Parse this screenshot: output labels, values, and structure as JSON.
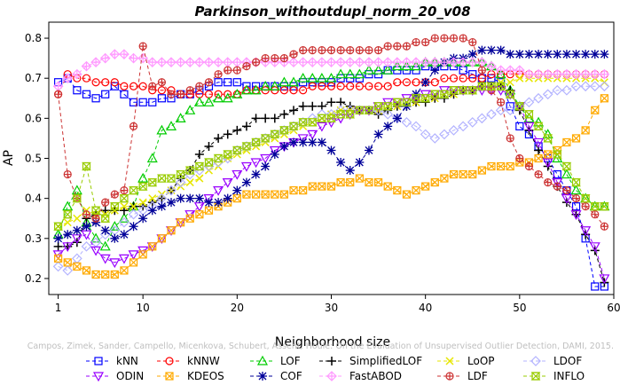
{
  "chart_data": {
    "type": "line",
    "title": "Parkinson_withoutdupl_norm_20_v08",
    "xlabel": "Neighborhood size",
    "ylabel": "AP",
    "xlim": [
      0,
      60
    ],
    "ylim": [
      0.16,
      0.84
    ],
    "xticks": [
      "1",
      "10",
      "20",
      "30",
      "40",
      "50",
      "60"
    ],
    "yticks": [
      "0.2",
      "0.3",
      "0.4",
      "0.5",
      "0.6",
      "0.7",
      "0.8"
    ],
    "grid": false,
    "legend_position": "bottom",
    "watermark": "Campos, Zimek, Sander, Campello, Micenkova, Schubert, Assent, Houle: On the Evaluation of Unsupervised Outlier Detection, DAMI, 2015.",
    "x": [
      1,
      2,
      3,
      4,
      5,
      6,
      7,
      8,
      9,
      10,
      11,
      12,
      13,
      14,
      15,
      16,
      17,
      18,
      19,
      20,
      21,
      22,
      23,
      24,
      25,
      26,
      27,
      28,
      29,
      30,
      31,
      32,
      33,
      34,
      35,
      36,
      37,
      38,
      39,
      40,
      41,
      42,
      43,
      44,
      45,
      46,
      47,
      48,
      49,
      50,
      51,
      52,
      53,
      54,
      55,
      56,
      57,
      58,
      59
    ],
    "series": [
      {
        "name": "kNN",
        "color": "#0000ff",
        "marker": "square",
        "dash": "4,3",
        "values": [
          0.69,
          0.7,
          0.67,
          0.66,
          0.65,
          0.66,
          0.68,
          0.66,
          0.64,
          0.64,
          0.64,
          0.65,
          0.65,
          0.66,
          0.66,
          0.67,
          0.68,
          0.69,
          0.69,
          0.69,
          0.68,
          0.68,
          0.68,
          0.68,
          0.68,
          0.68,
          0.69,
          0.69,
          0.69,
          0.69,
          0.7,
          0.7,
          0.7,
          0.71,
          0.71,
          0.72,
          0.72,
          0.72,
          0.72,
          0.73,
          0.73,
          0.73,
          0.73,
          0.72,
          0.71,
          0.7,
          0.7,
          0.69,
          0.63,
          0.58,
          0.56,
          0.53,
          0.5,
          0.46,
          0.42,
          0.38,
          0.3,
          0.18,
          0.18
        ]
      },
      {
        "name": "kNNW",
        "color": "#ff0000",
        "marker": "circle",
        "dash": "4,3",
        "values": [
          0.66,
          0.71,
          0.7,
          0.7,
          0.69,
          0.69,
          0.69,
          0.68,
          0.68,
          0.68,
          0.67,
          0.67,
          0.67,
          0.66,
          0.66,
          0.66,
          0.66,
          0.66,
          0.66,
          0.66,
          0.67,
          0.67,
          0.67,
          0.67,
          0.67,
          0.67,
          0.67,
          0.68,
          0.68,
          0.68,
          0.68,
          0.68,
          0.68,
          0.68,
          0.68,
          0.68,
          0.69,
          0.69,
          0.69,
          0.69,
          0.69,
          0.7,
          0.7,
          0.7,
          0.7,
          0.7,
          0.71,
          0.71,
          0.71,
          0.71,
          0.71,
          0.71,
          0.71,
          0.71,
          0.71,
          0.71,
          0.71,
          0.71,
          0.71
        ]
      },
      {
        "name": "LOF",
        "color": "#00cc00",
        "marker": "triangle",
        "dash": "4,3",
        "values": [
          0.31,
          0.38,
          0.42,
          0.34,
          0.3,
          0.28,
          0.33,
          0.35,
          0.38,
          0.45,
          0.5,
          0.57,
          0.58,
          0.6,
          0.62,
          0.64,
          0.64,
          0.65,
          0.65,
          0.66,
          0.67,
          0.67,
          0.68,
          0.68,
          0.69,
          0.69,
          0.7,
          0.7,
          0.7,
          0.7,
          0.71,
          0.71,
          0.71,
          0.72,
          0.72,
          0.72,
          0.73,
          0.73,
          0.73,
          0.74,
          0.74,
          0.74,
          0.74,
          0.74,
          0.74,
          0.74,
          0.73,
          0.71,
          0.67,
          0.63,
          0.6,
          0.59,
          0.56,
          0.5,
          0.46,
          0.42,
          0.4,
          0.38,
          0.38
        ]
      },
      {
        "name": "SimplifiedLOF",
        "color": "#000000",
        "marker": "plus",
        "dash": "4,3",
        "values": [
          0.28,
          0.28,
          0.29,
          0.35,
          0.36,
          0.37,
          0.37,
          0.37,
          0.38,
          0.38,
          0.39,
          0.4,
          0.42,
          0.45,
          0.47,
          0.51,
          0.53,
          0.55,
          0.56,
          0.57,
          0.58,
          0.6,
          0.6,
          0.6,
          0.61,
          0.62,
          0.63,
          0.63,
          0.63,
          0.64,
          0.64,
          0.63,
          0.62,
          0.62,
          0.61,
          0.62,
          0.63,
          0.63,
          0.64,
          0.64,
          0.65,
          0.65,
          0.66,
          0.67,
          0.67,
          0.68,
          0.68,
          0.68,
          0.67,
          0.62,
          0.57,
          0.52,
          0.48,
          0.43,
          0.39,
          0.36,
          0.31,
          0.27,
          0.19
        ]
      },
      {
        "name": "LoOP",
        "color": "#e6e600",
        "marker": "x",
        "dash": "4,3",
        "values": [
          0.33,
          0.34,
          0.35,
          0.37,
          0.36,
          0.36,
          0.37,
          0.38,
          0.38,
          0.39,
          0.4,
          0.41,
          0.42,
          0.43,
          0.44,
          0.45,
          0.47,
          0.48,
          0.5,
          0.51,
          0.52,
          0.53,
          0.54,
          0.55,
          0.56,
          0.57,
          0.58,
          0.59,
          0.6,
          0.61,
          0.62,
          0.62,
          0.62,
          0.62,
          0.62,
          0.63,
          0.63,
          0.64,
          0.64,
          0.65,
          0.65,
          0.66,
          0.66,
          0.67,
          0.67,
          0.68,
          0.68,
          0.69,
          0.69,
          0.7,
          0.7,
          0.7,
          0.7,
          0.7,
          0.7,
          0.7,
          0.7,
          0.7,
          0.69
        ]
      },
      {
        "name": "LDOF",
        "color": "#b3b3ff",
        "marker": "diamond",
        "dash": "4,3",
        "values": [
          0.23,
          0.22,
          0.25,
          0.28,
          0.29,
          0.31,
          0.32,
          0.34,
          0.36,
          0.37,
          0.38,
          0.4,
          0.42,
          0.44,
          0.46,
          0.47,
          0.48,
          0.49,
          0.5,
          0.52,
          0.53,
          0.54,
          0.55,
          0.56,
          0.57,
          0.58,
          0.59,
          0.6,
          0.61,
          0.61,
          0.62,
          0.62,
          0.62,
          0.62,
          0.62,
          0.61,
          0.6,
          0.59,
          0.58,
          0.56,
          0.55,
          0.56,
          0.57,
          0.58,
          0.59,
          0.6,
          0.61,
          0.62,
          0.62,
          0.63,
          0.64,
          0.65,
          0.66,
          0.67,
          0.67,
          0.68,
          0.68,
          0.68,
          0.68
        ]
      },
      {
        "name": "ODIN",
        "color": "#9900ff",
        "marker": "triangle-down",
        "dash": "4,3",
        "values": [
          0.26,
          0.28,
          0.3,
          0.31,
          0.27,
          0.25,
          0.24,
          0.25,
          0.26,
          0.27,
          0.28,
          0.3,
          0.32,
          0.34,
          0.36,
          0.38,
          0.4,
          0.42,
          0.44,
          0.46,
          0.48,
          0.49,
          0.5,
          0.52,
          0.53,
          0.54,
          0.55,
          0.56,
          0.58,
          0.59,
          0.6,
          0.61,
          0.62,
          0.62,
          0.63,
          0.64,
          0.64,
          0.65,
          0.65,
          0.66,
          0.66,
          0.67,
          0.67,
          0.67,
          0.67,
          0.67,
          0.67,
          0.67,
          0.66,
          0.63,
          0.58,
          0.54,
          0.49,
          0.44,
          0.4,
          0.36,
          0.32,
          0.28,
          0.2
        ]
      },
      {
        "name": "KDEOS",
        "color": "#ffaa00",
        "marker": "square-x",
        "dash": "4,3",
        "values": [
          0.25,
          0.24,
          0.23,
          0.22,
          0.21,
          0.21,
          0.21,
          0.22,
          0.24,
          0.26,
          0.28,
          0.3,
          0.32,
          0.34,
          0.35,
          0.36,
          0.37,
          0.38,
          0.39,
          0.4,
          0.41,
          0.41,
          0.41,
          0.41,
          0.41,
          0.42,
          0.42,
          0.43,
          0.43,
          0.43,
          0.44,
          0.44,
          0.45,
          0.44,
          0.44,
          0.43,
          0.42,
          0.41,
          0.42,
          0.43,
          0.44,
          0.45,
          0.46,
          0.46,
          0.46,
          0.47,
          0.48,
          0.48,
          0.48,
          0.49,
          0.49,
          0.5,
          0.51,
          0.52,
          0.54,
          0.55,
          0.57,
          0.62,
          0.65
        ]
      },
      {
        "name": "COF",
        "color": "#000099",
        "marker": "star",
        "dash": "4,3",
        "values": [
          0.3,
          0.31,
          0.32,
          0.33,
          0.34,
          0.32,
          0.3,
          0.31,
          0.33,
          0.35,
          0.37,
          0.38,
          0.39,
          0.4,
          0.4,
          0.4,
          0.39,
          0.39,
          0.4,
          0.42,
          0.44,
          0.46,
          0.48,
          0.51,
          0.53,
          0.54,
          0.54,
          0.54,
          0.54,
          0.52,
          0.49,
          0.47,
          0.49,
          0.52,
          0.56,
          0.58,
          0.6,
          0.63,
          0.66,
          0.69,
          0.72,
          0.74,
          0.75,
          0.75,
          0.76,
          0.77,
          0.77,
          0.77,
          0.76,
          0.76,
          0.76,
          0.76,
          0.76,
          0.76,
          0.76,
          0.76,
          0.76,
          0.76,
          0.76
        ]
      },
      {
        "name": "FastABOD",
        "color": "#ff99ff",
        "marker": "diamond-plus",
        "dash": "4,3",
        "values": [
          0.68,
          0.7,
          0.71,
          0.73,
          0.74,
          0.75,
          0.76,
          0.76,
          0.75,
          0.75,
          0.74,
          0.74,
          0.74,
          0.74,
          0.74,
          0.74,
          0.74,
          0.74,
          0.74,
          0.74,
          0.74,
          0.74,
          0.74,
          0.74,
          0.74,
          0.74,
          0.74,
          0.74,
          0.74,
          0.74,
          0.74,
          0.74,
          0.74,
          0.74,
          0.74,
          0.74,
          0.74,
          0.74,
          0.74,
          0.74,
          0.74,
          0.74,
          0.74,
          0.74,
          0.74,
          0.74,
          0.73,
          0.72,
          0.72,
          0.72,
          0.71,
          0.71,
          0.71,
          0.71,
          0.71,
          0.71,
          0.71,
          0.71,
          0.71
        ]
      },
      {
        "name": "LDF",
        "color": "#cc3333",
        "marker": "circle-plus",
        "dash": "4,3",
        "values": [
          0.66,
          0.46,
          0.4,
          0.36,
          0.35,
          0.39,
          0.41,
          0.42,
          0.58,
          0.78,
          0.68,
          0.69,
          0.66,
          0.66,
          0.67,
          0.68,
          0.69,
          0.71,
          0.72,
          0.72,
          0.73,
          0.74,
          0.75,
          0.75,
          0.75,
          0.76,
          0.77,
          0.77,
          0.77,
          0.77,
          0.77,
          0.77,
          0.77,
          0.77,
          0.77,
          0.78,
          0.78,
          0.78,
          0.79,
          0.79,
          0.8,
          0.8,
          0.8,
          0.8,
          0.79,
          0.72,
          0.67,
          0.64,
          0.55,
          0.5,
          0.48,
          0.46,
          0.44,
          0.43,
          0.42,
          0.4,
          0.38,
          0.36,
          0.33
        ]
      },
      {
        "name": "INFLO",
        "color": "#99cc00",
        "marker": "square-hourglass",
        "dash": "4,3",
        "values": [
          0.33,
          0.36,
          0.4,
          0.48,
          0.37,
          0.35,
          0.38,
          0.4,
          0.42,
          0.43,
          0.44,
          0.45,
          0.45,
          0.46,
          0.47,
          0.48,
          0.49,
          0.5,
          0.51,
          0.52,
          0.53,
          0.54,
          0.55,
          0.56,
          0.57,
          0.58,
          0.59,
          0.59,
          0.6,
          0.6,
          0.61,
          0.61,
          0.62,
          0.62,
          0.63,
          0.63,
          0.64,
          0.64,
          0.65,
          0.65,
          0.66,
          0.66,
          0.67,
          0.67,
          0.67,
          0.68,
          0.68,
          0.68,
          0.66,
          0.63,
          0.61,
          0.58,
          0.55,
          0.51,
          0.48,
          0.44,
          0.4,
          0.38,
          0.38
        ]
      }
    ]
  }
}
